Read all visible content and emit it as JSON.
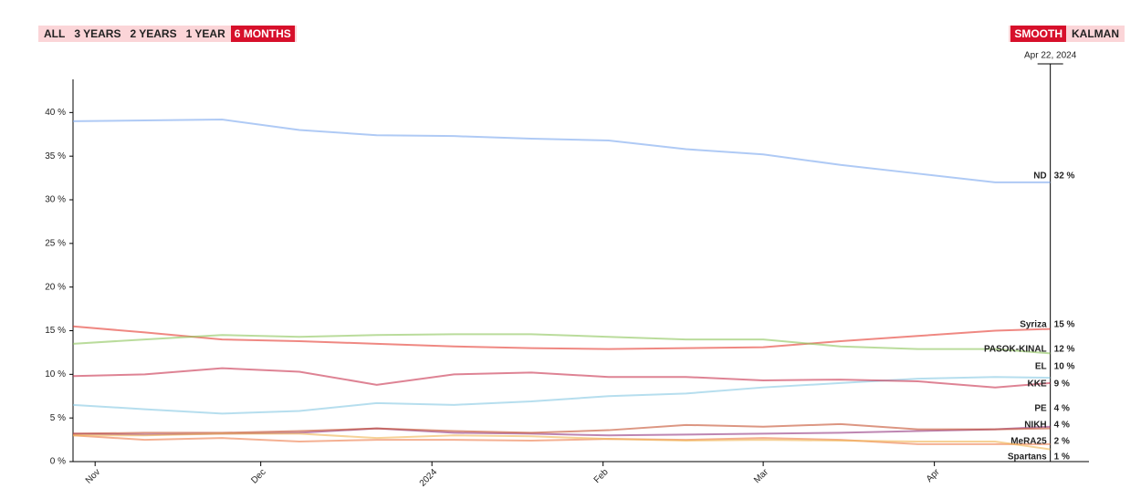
{
  "range_buttons": [
    "ALL",
    "3 YEARS",
    "2 YEARS",
    "1 YEAR",
    "6 MONTHS"
  ],
  "range_active": 4,
  "mode_buttons": [
    "SMOOTH",
    "KALMAN"
  ],
  "mode_active": 0,
  "chart_data": {
    "type": "line",
    "cursor_label": "Apr 22, 2024",
    "cursor_x": "2024-04-22",
    "x": [
      "2023-10-28",
      "2023-11-10",
      "2023-11-24",
      "2023-12-08",
      "2023-12-22",
      "2024-01-05",
      "2024-01-19",
      "2024-02-02",
      "2024-02-16",
      "2024-03-01",
      "2024-03-15",
      "2024-03-29",
      "2024-04-12",
      "2024-04-22"
    ],
    "xlim": [
      "2023-10-28",
      "2024-04-29"
    ],
    "xticks": [
      {
        "value": "2023-11-01",
        "label": "Nov"
      },
      {
        "value": "2023-12-01",
        "label": "Dec"
      },
      {
        "value": "2024-01-01",
        "label": "2024"
      },
      {
        "value": "2024-02-01",
        "label": "Feb"
      },
      {
        "value": "2024-03-01",
        "label": "Mar"
      },
      {
        "value": "2024-04-01",
        "label": "Apr"
      }
    ],
    "ylim": [
      0,
      43.8
    ],
    "yticks": [
      {
        "value": 0,
        "label": "0 %"
      },
      {
        "value": 5,
        "label": "5 %"
      },
      {
        "value": 10,
        "label": "10 %"
      },
      {
        "value": 15,
        "label": "15 %"
      },
      {
        "value": 20,
        "label": "20 %"
      },
      {
        "value": 25,
        "label": "25 %"
      },
      {
        "value": 30,
        "label": "30 %"
      },
      {
        "value": 35,
        "label": "35 %"
      },
      {
        "value": 40,
        "label": "40 %"
      }
    ],
    "series": [
      {
        "name": "ND",
        "label": "32 %",
        "color": "#7aa7ef",
        "values": [
          39,
          39.1,
          39.2,
          38,
          37.4,
          37.3,
          37.0,
          36.8,
          35.8,
          35.2,
          34.0,
          33.0,
          32.0,
          32.0
        ]
      },
      {
        "name": "Syriza",
        "label": "15 %",
        "color": "#e4392f",
        "values": [
          15.5,
          14.8,
          14.0,
          13.8,
          13.5,
          13.2,
          13.0,
          12.9,
          13.0,
          13.1,
          13.8,
          14.4,
          15.0,
          15.2
        ]
      },
      {
        "name": "PASOK-KINAL",
        "label": "12 %",
        "color": "#8cc55a",
        "values": [
          13.5,
          14.0,
          14.5,
          14.3,
          14.5,
          14.6,
          14.6,
          14.3,
          14.0,
          14.0,
          13.2,
          12.9,
          12.9,
          12.4
        ]
      },
      {
        "name": "EL",
        "label": "10 %",
        "color": "#86c8e2",
        "values": [
          6.5,
          6.0,
          5.5,
          5.8,
          6.7,
          6.5,
          6.9,
          7.5,
          7.8,
          8.5,
          9.0,
          9.5,
          9.7,
          9.6
        ]
      },
      {
        "name": "KKE",
        "label": "9 %",
        "color": "#c8304c",
        "values": [
          9.8,
          10.0,
          10.7,
          10.3,
          8.8,
          10.0,
          10.2,
          9.7,
          9.7,
          9.3,
          9.4,
          9.2,
          8.5,
          9.0
        ]
      },
      {
        "name": "PE",
        "label": "4 %",
        "color": "#93367f",
        "values": [
          3.2,
          3.1,
          3.2,
          3.3,
          3.8,
          3.3,
          3.2,
          3.0,
          3.1,
          3.2,
          3.3,
          3.5,
          3.7,
          4.0
        ]
      },
      {
        "name": "NIKH",
        "label": "4 %",
        "color": "#c4502f",
        "values": [
          3.2,
          3.3,
          3.3,
          3.5,
          3.8,
          3.5,
          3.3,
          3.6,
          4.2,
          4.0,
          4.3,
          3.7,
          3.7,
          3.8
        ]
      },
      {
        "name": "MeRA25",
        "label": "2 %",
        "color": "#ec7c4a",
        "values": [
          3.0,
          2.5,
          2.7,
          2.3,
          2.5,
          2.5,
          2.4,
          2.6,
          2.5,
          2.7,
          2.5,
          2.0,
          2.0,
          2.0
        ]
      },
      {
        "name": "Spartans",
        "label": "1 %",
        "color": "#f0b452",
        "values": [
          3.0,
          3.0,
          3.2,
          3.2,
          2.7,
          3.0,
          2.9,
          2.6,
          2.4,
          2.5,
          2.4,
          2.3,
          2.3,
          1.4
        ]
      }
    ]
  }
}
